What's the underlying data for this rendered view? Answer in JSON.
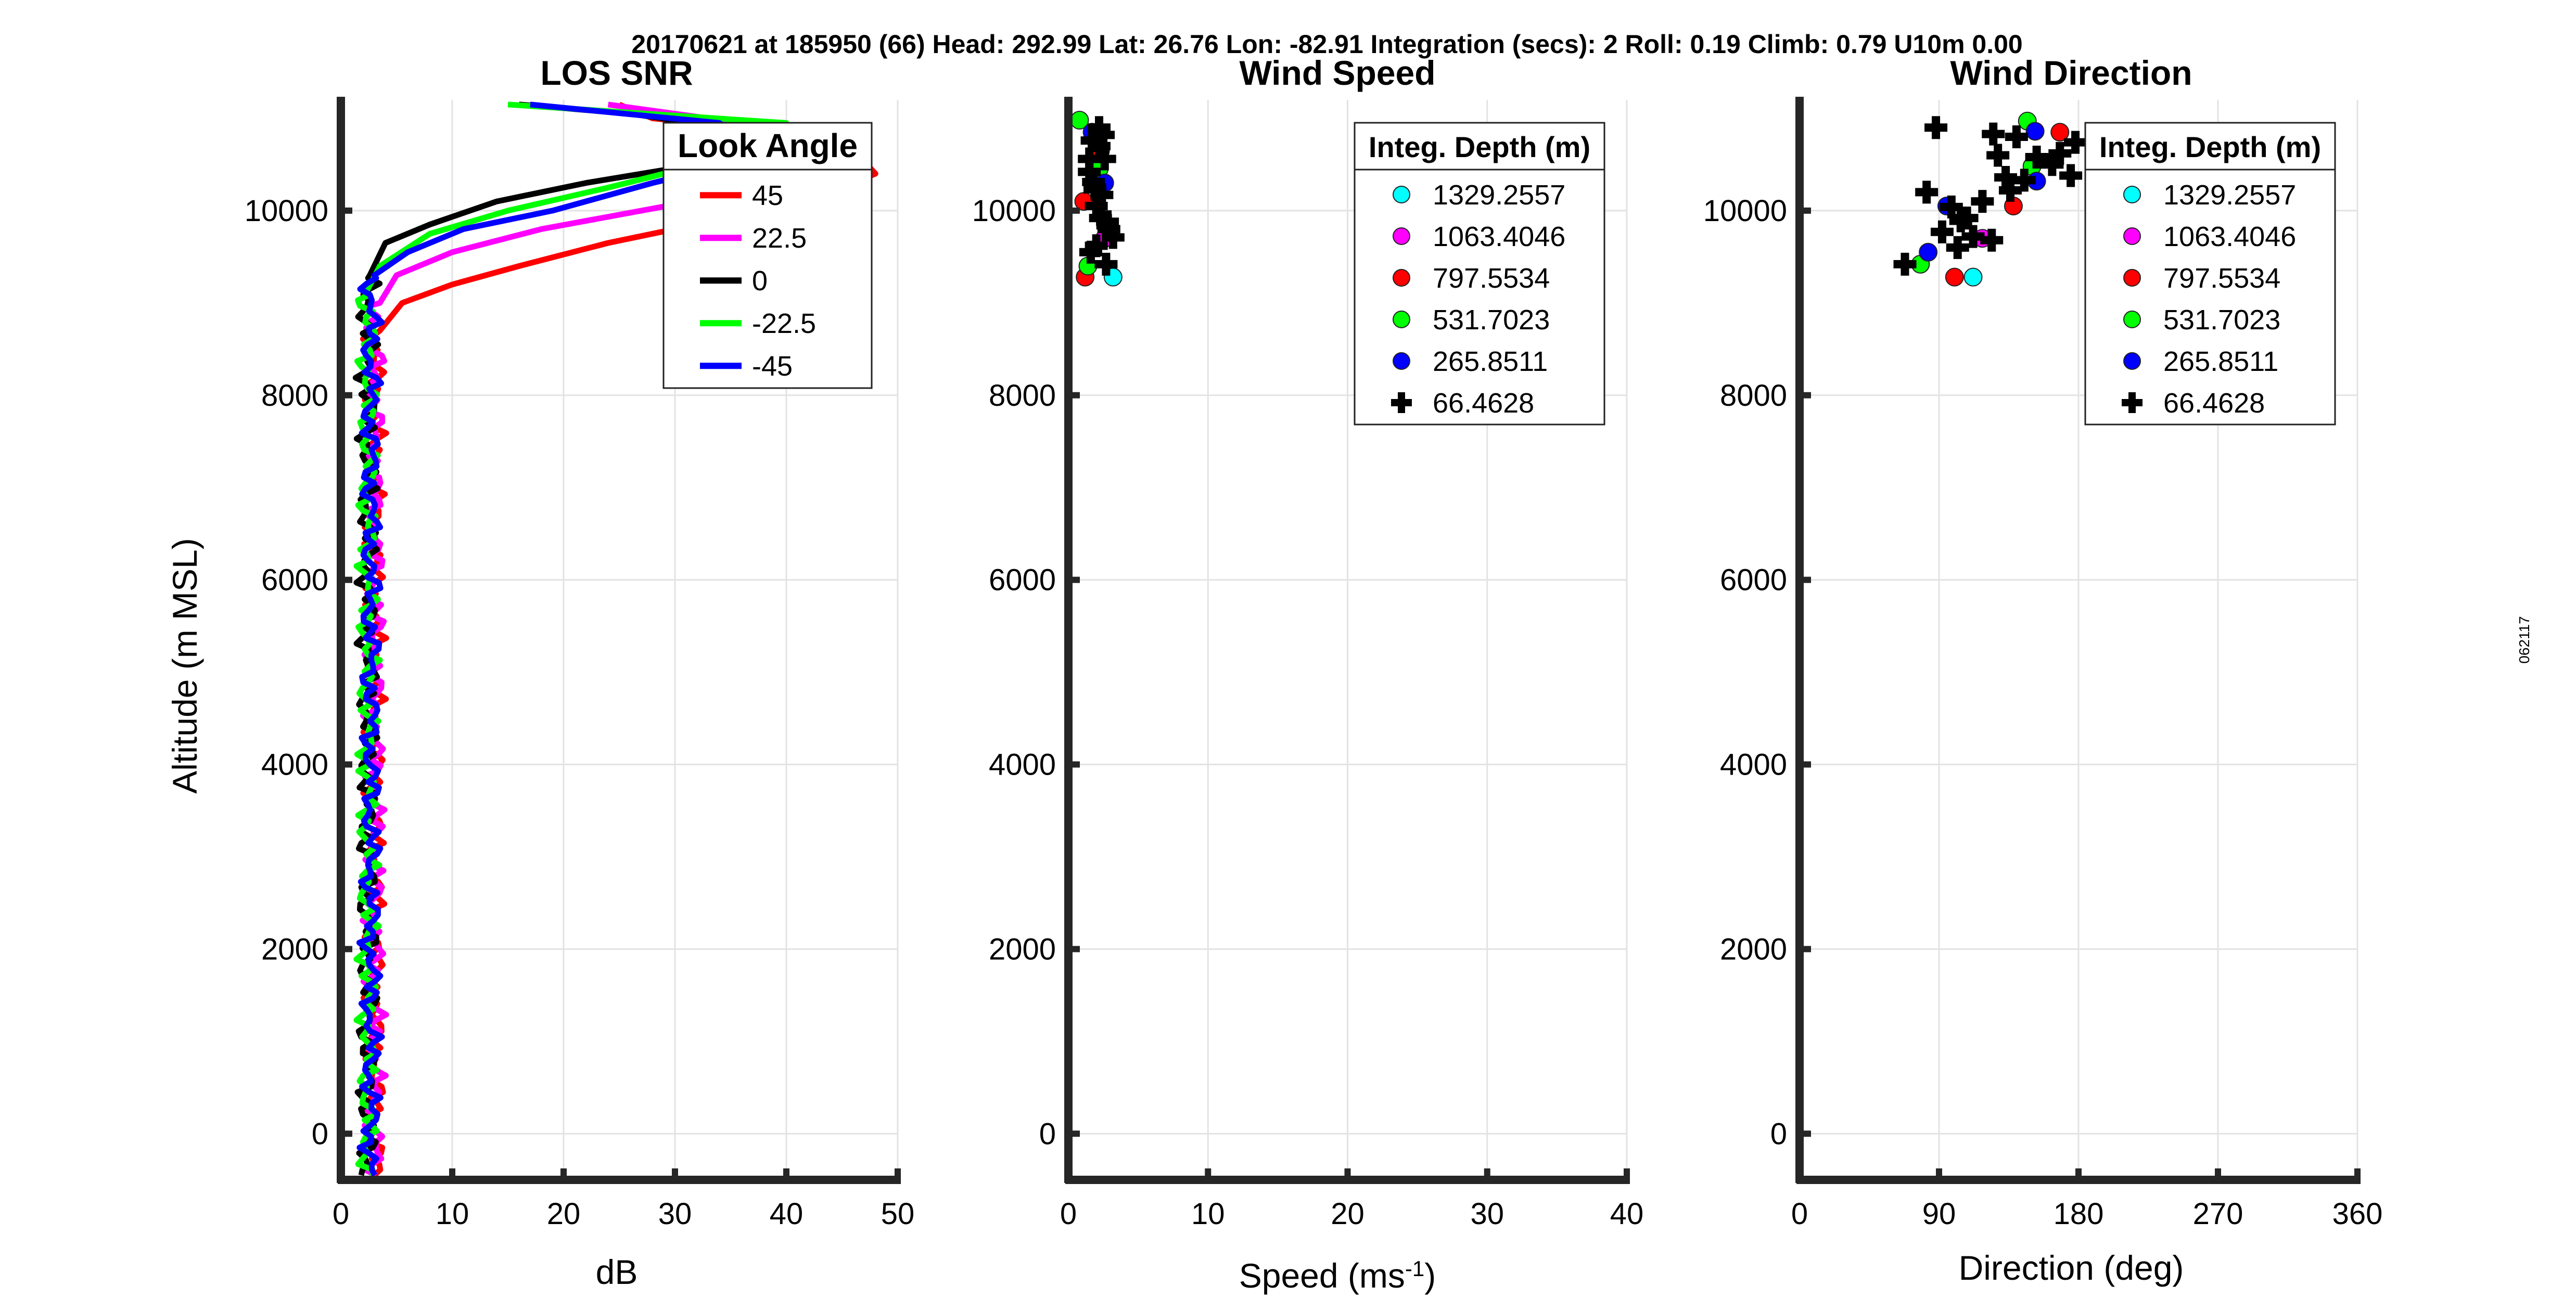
{
  "suptitle": "20170621 at 185950 (66)  Head: 292.99  Lat: 26.76  Lon: -82.91  Integration (secs): 2  Roll: 0.19  Climb: 0.79  U10m 0.00",
  "side_label": "062117",
  "colors": {
    "red": "#ff0000",
    "magenta": "#ff00ff",
    "black": "#000000",
    "green": "#00ff00",
    "blue": "#0000ff",
    "cyan": "#00ffff",
    "axis": "#262626",
    "grid": "#e3e3e3"
  },
  "chart_data": [
    {
      "id": "snr",
      "type": "line",
      "title": "LOS SNR",
      "xlabel": "dB",
      "ylabel": "Altitude (m MSL)",
      "xlim": [
        0,
        50
      ],
      "ylim": [
        -500,
        11200
      ],
      "xticks": [
        0,
        10,
        20,
        30,
        40,
        50
      ],
      "yticks": [
        0,
        2000,
        4000,
        6000,
        8000,
        10000
      ],
      "xtick_labels": [
        "0",
        "10",
        "20",
        "30",
        "40",
        "50"
      ],
      "ytick_labels": [
        "0",
        "2000",
        "4000",
        "6000",
        "8000",
        "10000"
      ],
      "legend_title": "Look Angle",
      "grid": true,
      "series": [
        {
          "name": "45",
          "color": "#ff0000",
          "base": 3.0,
          "top": [
            [
              8700,
              3.5
            ],
            [
              9000,
              5.5
            ],
            [
              9200,
              10
            ],
            [
              9400,
              16
            ],
            [
              9650,
              24
            ],
            [
              9850,
              32
            ],
            [
              10000,
              40
            ],
            [
              10400,
              48
            ],
            [
              10800,
              45
            ],
            [
              11000,
              28
            ],
            [
              11150,
              25
            ]
          ]
        },
        {
          "name": "22.5",
          "color": "#ff00ff",
          "base": 3.0,
          "top": [
            [
              9000,
              3.5
            ],
            [
              9300,
              5
            ],
            [
              9550,
              10
            ],
            [
              9800,
              18
            ],
            [
              10000,
              27
            ],
            [
              10200,
              36
            ],
            [
              10600,
              44
            ],
            [
              11000,
              33
            ],
            [
              11150,
              24
            ]
          ]
        },
        {
          "name": "0",
          "color": "#000000",
          "base": 2.4,
          "top": [
            [
              9300,
              2.6
            ],
            [
              9650,
              4
            ],
            [
              9850,
              8
            ],
            [
              10100,
              14
            ],
            [
              10300,
              22
            ],
            [
              10500,
              32
            ],
            [
              10800,
              40
            ],
            [
              11050,
              26
            ],
            [
              11150,
              16
            ]
          ]
        },
        {
          "name": "-22.5",
          "color": "#00ff00",
          "base": 2.4,
          "top": [
            [
              9100,
              2.2
            ],
            [
              9400,
              3.5
            ],
            [
              9750,
              8
            ],
            [
              10000,
              15
            ],
            [
              10250,
              24
            ],
            [
              10550,
              34
            ],
            [
              10950,
              40
            ],
            [
              11150,
              15
            ]
          ]
        },
        {
          "name": "-45",
          "color": "#0000ff",
          "base": 2.7,
          "top": [
            [
              9300,
              3
            ],
            [
              9550,
              6
            ],
            [
              9800,
              11
            ],
            [
              10000,
              19
            ],
            [
              10300,
              28
            ],
            [
              10600,
              38
            ],
            [
              10950,
              34
            ],
            [
              11150,
              17
            ]
          ]
        }
      ]
    },
    {
      "id": "speed",
      "type": "scatter",
      "title": "Wind Speed",
      "xlabel": "Speed (ms",
      "xlabel_sup": "-1",
      "xlabel_end": ")",
      "xlim": [
        0,
        40
      ],
      "ylim": [
        -500,
        11200
      ],
      "xticks": [
        0,
        10,
        20,
        30,
        40
      ],
      "yticks": [
        0,
        2000,
        4000,
        6000,
        8000,
        10000
      ],
      "xtick_labels": [
        "0",
        "10",
        "20",
        "30",
        "40"
      ],
      "ytick_labels": [
        "0",
        "2000",
        "4000",
        "6000",
        "8000",
        "10000"
      ],
      "legend_title": "Integ. Depth (m)",
      "grid": true,
      "series": [
        {
          "name": "1329.2557",
          "color": "#00ffff",
          "marker": "circle",
          "points": [
            [
              3.2,
              9280
            ]
          ]
        },
        {
          "name": "1063.4046",
          "color": "#ff00ff",
          "marker": "circle",
          "points": [
            [
              2.6,
              9700
            ]
          ]
        },
        {
          "name": "797.5534",
          "color": "#ff0000",
          "marker": "circle",
          "points": [
            [
              1.2,
              9280
            ],
            [
              1.1,
              10100
            ],
            [
              2.3,
              10650
            ]
          ]
        },
        {
          "name": "531.7023",
          "color": "#00ff00",
          "marker": "circle",
          "points": [
            [
              0.8,
              10980
            ],
            [
              1.4,
              9400
            ],
            [
              2.2,
              10450
            ]
          ]
        },
        {
          "name": "265.8511",
          "color": "#0000ff",
          "marker": "circle",
          "points": [
            [
              2.6,
              10300
            ],
            [
              1.7,
              10850
            ],
            [
              3.0,
              9800
            ]
          ]
        },
        {
          "name": "66.4628",
          "color": "#000000",
          "marker": "cross",
          "points": [
            [
              1.6,
              9550
            ],
            [
              2.0,
              9620
            ],
            [
              2.7,
              9420
            ],
            [
              3.2,
              9710
            ],
            [
              2.9,
              9800
            ],
            [
              2.3,
              9920
            ],
            [
              2.0,
              10050
            ],
            [
              2.4,
              10170
            ],
            [
              1.8,
              10310
            ],
            [
              1.5,
              10420
            ],
            [
              2.6,
              10560
            ],
            [
              2.2,
              10700
            ],
            [
              1.7,
              10760
            ],
            [
              2.5,
              10820
            ],
            [
              2.2,
              10900
            ],
            [
              1.5,
              10560
            ],
            [
              2.8,
              9880
            ],
            [
              1.9,
              10230
            ]
          ]
        }
      ]
    },
    {
      "id": "direction",
      "type": "scatter",
      "title": "Wind Direction",
      "xlabel": "Direction (deg)",
      "xlim": [
        0,
        360
      ],
      "ylim": [
        -500,
        11200
      ],
      "xticks": [
        0,
        90,
        180,
        270,
        360
      ],
      "yticks": [
        0,
        2000,
        4000,
        6000,
        8000,
        10000
      ],
      "xtick_labels": [
        "0",
        "90",
        "180",
        "270",
        "360"
      ],
      "ytick_labels": [
        "0",
        "2000",
        "4000",
        "6000",
        "8000",
        "10000"
      ],
      "legend_title": "Integ. Depth (m)",
      "grid": true,
      "series": [
        {
          "name": "1329.2557",
          "color": "#00ffff",
          "marker": "circle",
          "points": [
            [
              112,
              9280
            ]
          ]
        },
        {
          "name": "1063.4046",
          "color": "#ff00ff",
          "marker": "circle",
          "points": [
            [
              118,
              9700
            ]
          ]
        },
        {
          "name": "797.5534",
          "color": "#ff0000",
          "marker": "circle",
          "points": [
            [
              100,
              9280
            ],
            [
              138,
              10050
            ],
            [
              168,
              10850
            ]
          ]
        },
        {
          "name": "531.7023",
          "color": "#00ff00",
          "marker": "circle",
          "points": [
            [
              78,
              9420
            ],
            [
              147,
              10970
            ],
            [
              150,
              10480
            ]
          ]
        },
        {
          "name": "265.8511",
          "color": "#0000ff",
          "marker": "circle",
          "points": [
            [
              83,
              9550
            ],
            [
              95,
              10050
            ],
            [
              153,
              10320
            ],
            [
              152,
              10860
            ]
          ]
        },
        {
          "name": "66.4628",
          "color": "#000000",
          "marker": "cross",
          "points": [
            [
              68,
              9420
            ],
            [
              82,
              10200
            ],
            [
              92,
              9770
            ],
            [
              98,
              10040
            ],
            [
              104,
              9890
            ],
            [
              108,
              9920
            ],
            [
              102,
              9600
            ],
            [
              112,
              9720
            ],
            [
              118,
              10100
            ],
            [
              124,
              9680
            ],
            [
              125,
              10830
            ],
            [
              128,
              10600
            ],
            [
              133,
              10360
            ],
            [
              136,
              10220
            ],
            [
              140,
              10800
            ],
            [
              145,
              10330
            ],
            [
              153,
              10580
            ],
            [
              163,
              10500
            ],
            [
              168,
              10620
            ],
            [
              175,
              10380
            ],
            [
              178,
              10740
            ],
            [
              88,
              10900
            ]
          ]
        }
      ]
    }
  ]
}
